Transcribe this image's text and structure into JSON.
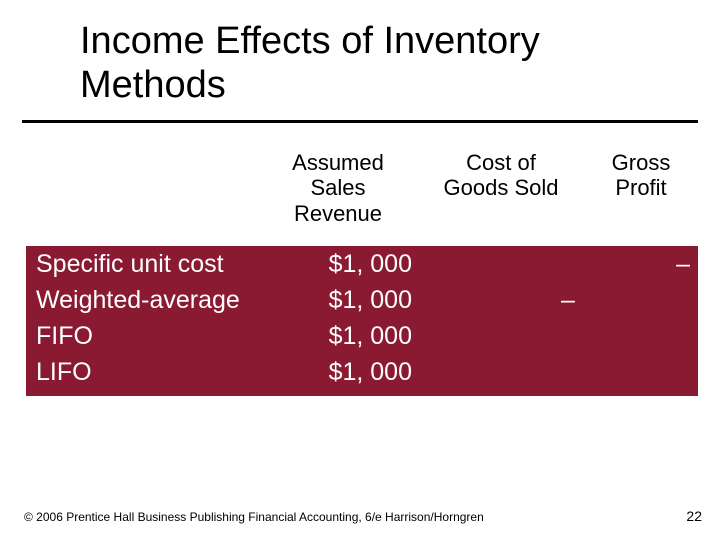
{
  "title": "Income Effects of Inventory Methods",
  "headers": {
    "assumed": "Assumed Sales Revenue",
    "cogs": "Cost of Goods Sold",
    "gross": "Gross Profit"
  },
  "rows": [
    {
      "method": "Specific unit cost",
      "revenue": "$1, 000",
      "dash1": "",
      "cogs": "",
      "eq": "",
      "gp": "–"
    },
    {
      "method": "Weighted-average",
      "revenue": "$1, 000",
      "dash1": "",
      "cogs": "",
      "eq": "–",
      "gp": ""
    },
    {
      "method": "FIFO",
      "revenue": "$1, 000",
      "dash1": "",
      "cogs": "",
      "eq": "",
      "gp": ""
    },
    {
      "method": "LIFO",
      "revenue": "$1, 000",
      "dash1": "",
      "cogs": "",
      "eq": "",
      "gp": ""
    }
  ],
  "footer": "© 2006 Prentice Hall Business Publishing Financial Accounting, 6/e Harrison/Horngren",
  "page": "22",
  "colors": {
    "band": "#8a1a32",
    "text_on_band": "#ffffff",
    "title": "#000000",
    "rule": "#000000"
  }
}
